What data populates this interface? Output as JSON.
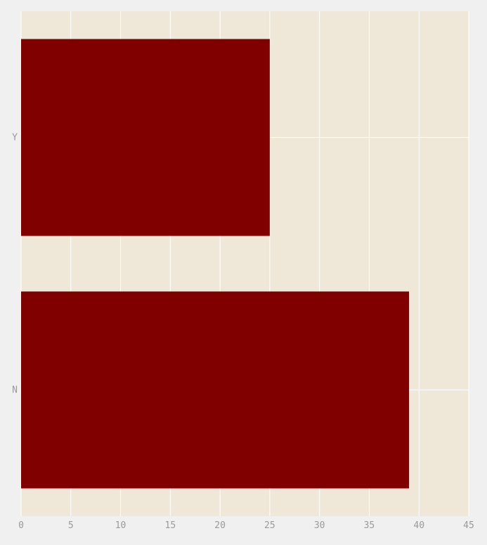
{
  "colors": {
    "page_background": "#f0f0f0",
    "plot_background": "#efe8d8",
    "grid": "#ffffff",
    "bar": "#800000",
    "tick_text": "#9a9a9a"
  },
  "chart_data": {
    "type": "bar",
    "orientation": "horizontal",
    "categories": [
      "Y",
      "N"
    ],
    "values": [
      25,
      39
    ],
    "xlim": [
      0,
      45
    ],
    "xticks": [
      0,
      5,
      10,
      15,
      20,
      25,
      30,
      35,
      40,
      45
    ],
    "grid": true,
    "legend": "none",
    "title": "",
    "xlabel": "",
    "ylabel": ""
  }
}
